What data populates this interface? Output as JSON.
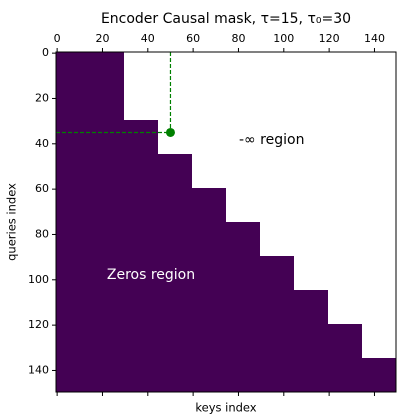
{
  "chart_data": {
    "type": "heatmap",
    "title": "Encoder Causal mask, τ=15, τ₀=30",
    "x_label": "keys index",
    "y_label": "queries index",
    "xlim": [
      -0.5,
      149.5
    ],
    "ylim": [
      149.5,
      -0.5
    ],
    "xticks": [
      0,
      20,
      40,
      60,
      80,
      100,
      120,
      140
    ],
    "yticks": [
      0,
      20,
      40,
      60,
      80,
      100,
      120,
      140
    ],
    "fill_color": "#440154",
    "background_color": "#ffffff",
    "blocks": [
      {
        "query_start": 0,
        "query_end": 30,
        "key_end": 30
      },
      {
        "query_start": 30,
        "query_end": 45,
        "key_end": 45
      },
      {
        "query_start": 45,
        "query_end": 60,
        "key_end": 60
      },
      {
        "query_start": 60,
        "query_end": 75,
        "key_end": 75
      },
      {
        "query_start": 75,
        "query_end": 90,
        "key_end": 90
      },
      {
        "query_start": 90,
        "query_end": 105,
        "key_end": 105
      },
      {
        "query_start": 105,
        "query_end": 120,
        "key_end": 120
      },
      {
        "query_start": 120,
        "query_end": 135,
        "key_end": 135
      },
      {
        "query_start": 135,
        "query_end": 150,
        "key_end": 150
      }
    ],
    "point": {
      "x": 50,
      "y": 35,
      "color": "#008000"
    },
    "annotations": [
      "-∞ region",
      "Zeros region"
    ],
    "annotation_colors": [
      "#000000",
      "#ffffff"
    ]
  }
}
